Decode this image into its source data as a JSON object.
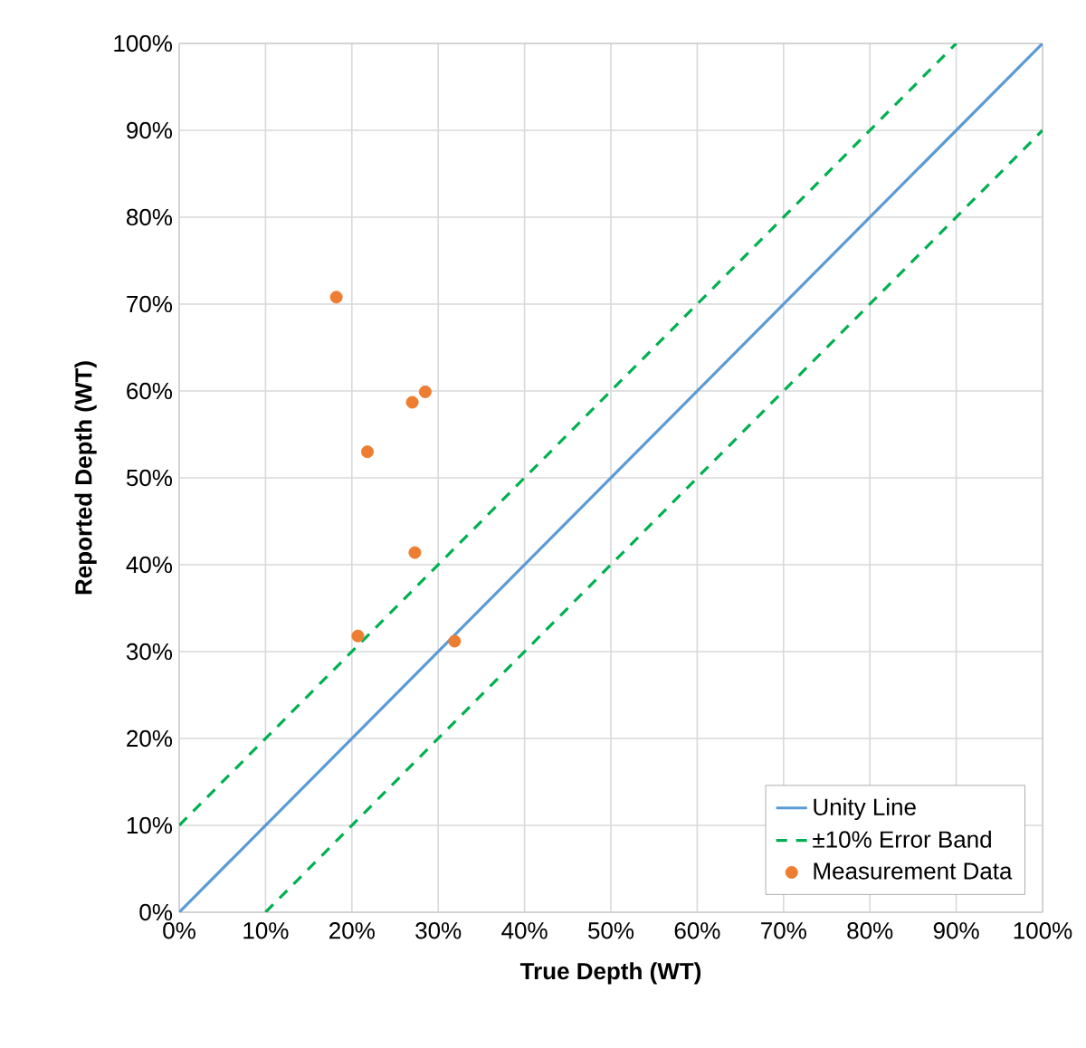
{
  "chart_data": {
    "type": "scatter",
    "xlabel": "True Depth (WT)",
    "ylabel": "Reported Depth (WT)",
    "xlim": [
      0,
      100
    ],
    "ylim": [
      0,
      100
    ],
    "xticks": [
      {
        "value": 0,
        "label": "0%"
      },
      {
        "value": 10,
        "label": "10%"
      },
      {
        "value": 20,
        "label": "20%"
      },
      {
        "value": 30,
        "label": "30%"
      },
      {
        "value": 40,
        "label": "40%"
      },
      {
        "value": 50,
        "label": "50%"
      },
      {
        "value": 60,
        "label": "60%"
      },
      {
        "value": 70,
        "label": "70%"
      },
      {
        "value": 80,
        "label": "80%"
      },
      {
        "value": 90,
        "label": "90%"
      },
      {
        "value": 100,
        "label": "100%"
      }
    ],
    "yticks": [
      {
        "value": 0,
        "label": "0%"
      },
      {
        "value": 10,
        "label": "10%"
      },
      {
        "value": 20,
        "label": "20%"
      },
      {
        "value": 30,
        "label": "30%"
      },
      {
        "value": 40,
        "label": "40%"
      },
      {
        "value": 50,
        "label": "50%"
      },
      {
        "value": 60,
        "label": "60%"
      },
      {
        "value": 70,
        "label": "70%"
      },
      {
        "value": 80,
        "label": "80%"
      },
      {
        "value": 90,
        "label": "90%"
      },
      {
        "value": 100,
        "label": "100%"
      }
    ],
    "grid": true,
    "legend": "bottom right",
    "series": [
      {
        "name": "Unity Line",
        "type": "line",
        "color": "#5b9bd5",
        "line_style": "solid",
        "marker": "none",
        "x": [
          0,
          100
        ],
        "values": [
          0,
          100
        ]
      },
      {
        "name": "±10% Error Band",
        "type": "line",
        "color": "#00b050",
        "line_style": "dashed",
        "marker": "none",
        "x": [
          0,
          90
        ],
        "values": [
          10,
          100
        ]
      },
      {
        "type": "line",
        "color": "#00b050",
        "line_style": "dashed",
        "marker": "none",
        "x": [
          10,
          100
        ],
        "values": [
          0,
          90
        ]
      },
      {
        "name": "Measurement Data",
        "color": "#ed7d31",
        "marker": "circle",
        "x": [
          18.2,
          27.0,
          28.5,
          21.8,
          27.3,
          20.7,
          31.9
        ],
        "values": [
          70.8,
          58.7,
          59.9,
          53.0,
          41.4,
          31.8,
          31.2
        ]
      }
    ]
  }
}
